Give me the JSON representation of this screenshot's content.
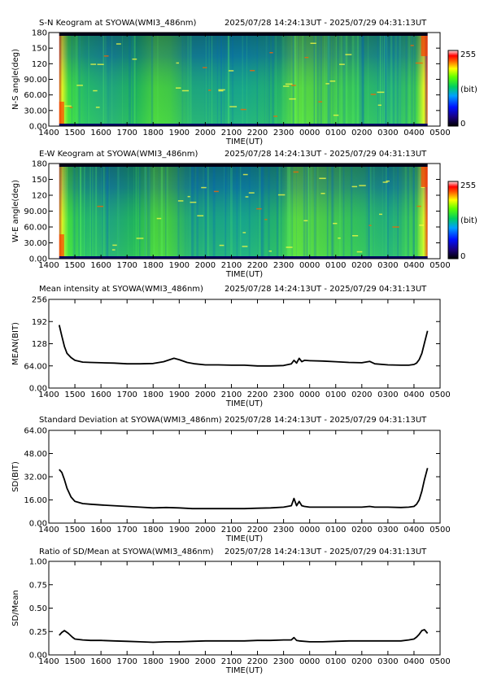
{
  "figure": {
    "time_range": "2025/07/28 14:24:13UT - 2025/07/29 04:31:13UT",
    "x_tick_labels": [
      "1400",
      "1500",
      "1600",
      "1700",
      "1800",
      "1900",
      "2000",
      "2100",
      "2200",
      "2300",
      "0000",
      "0100",
      "0200",
      "0300",
      "0400",
      "0500"
    ],
    "x_label": "TIME(UT)"
  },
  "colors": {
    "line": "#000000",
    "frame": "#000000",
    "bg": "#ffffff"
  },
  "chart_data": [
    {
      "type": "heatmap",
      "title": "S-N Keogram at SYOWA(WMI3_486nm)",
      "ylabel": "N-S angle(deg)",
      "xlabel": "TIME(UT)",
      "y_ticks": [
        "0.00",
        "30.00",
        "60.00",
        "90.00",
        "120",
        "150",
        "180"
      ],
      "ylim": [
        0,
        180
      ],
      "x_range_hours": [
        14.0,
        29.0
      ],
      "data_range_hours": [
        14.4,
        28.52
      ],
      "colorbar": {
        "min": "0",
        "max": "255",
        "unit": "(bit)"
      }
    },
    {
      "type": "heatmap",
      "title": "E-W Keogram at SYOWA(WMI3_486nm)",
      "ylabel": "W-E angle(deg)",
      "xlabel": "TIME(UT)",
      "y_ticks": [
        "0.00",
        "30.00",
        "60.00",
        "90.00",
        "120",
        "150",
        "180"
      ],
      "ylim": [
        0,
        180
      ],
      "x_range_hours": [
        14.0,
        29.0
      ],
      "data_range_hours": [
        14.4,
        28.52
      ],
      "colorbar": {
        "min": "0",
        "max": "255",
        "unit": "(bit)"
      }
    },
    {
      "type": "line",
      "title": "Mean intensity at SYOWA(WMI3_486nm)",
      "ylabel": "MEAN(BIT)",
      "xlabel": "TIME(UT)",
      "y_ticks": [
        "0.00",
        "64.00",
        "128",
        "192",
        "256"
      ],
      "ylim": [
        0,
        256
      ],
      "x_hours": [
        14.4,
        14.5,
        14.6,
        14.7,
        14.85,
        15.0,
        15.3,
        15.6,
        16.0,
        16.5,
        17.0,
        17.5,
        18.0,
        18.4,
        18.8,
        19.0,
        19.3,
        19.6,
        20.0,
        20.5,
        21.0,
        21.5,
        22.0,
        22.5,
        23.0,
        23.3,
        23.4,
        23.5,
        23.6,
        23.7,
        23.8,
        24.0,
        24.5,
        25.0,
        25.5,
        26.0,
        26.3,
        26.5,
        27.0,
        27.5,
        27.8,
        28.0,
        28.1,
        28.2,
        28.3,
        28.4,
        28.52
      ],
      "y": [
        182,
        150,
        120,
        100,
        88,
        80,
        75,
        74,
        73,
        72,
        70,
        70,
        71,
        76,
        86,
        82,
        74,
        70,
        67,
        67,
        66,
        66,
        64,
        64,
        65,
        70,
        80,
        72,
        86,
        76,
        80,
        79,
        78,
        76,
        74,
        73,
        77,
        70,
        67,
        66,
        66,
        68,
        72,
        82,
        100,
        130,
        165
      ]
    },
    {
      "type": "line",
      "title": "Standard Deviation at SYOWA(WMI3_486nm)",
      "ylabel": "SD(BIT)",
      "xlabel": "TIME(UT)",
      "y_ticks": [
        "0.00",
        "16.00",
        "32.00",
        "48.00",
        "64.00"
      ],
      "ylim": [
        0,
        64
      ],
      "x_hours": [
        14.4,
        14.5,
        14.6,
        14.7,
        14.85,
        15.0,
        15.3,
        15.6,
        16.0,
        16.5,
        17.0,
        17.5,
        18.0,
        18.5,
        19.0,
        19.5,
        20.0,
        20.5,
        21.0,
        21.5,
        22.0,
        22.5,
        23.0,
        23.3,
        23.4,
        23.5,
        23.6,
        23.7,
        23.8,
        24.0,
        24.5,
        25.0,
        25.5,
        26.0,
        26.3,
        26.5,
        27.0,
        27.5,
        27.8,
        28.0,
        28.1,
        28.2,
        28.3,
        28.4,
        28.52
      ],
      "y": [
        37,
        35,
        30,
        24,
        18,
        15,
        13.5,
        13,
        12.5,
        12,
        11.5,
        11,
        10.5,
        10.8,
        10.5,
        10,
        10,
        10,
        10,
        10,
        10.3,
        10.5,
        11,
        12,
        17,
        12,
        15,
        12,
        11.5,
        11,
        11,
        11,
        11,
        11,
        11.5,
        11,
        11,
        10.8,
        11,
        11.5,
        13,
        16,
        22,
        30,
        38
      ]
    },
    {
      "type": "line",
      "title": "Ratio of SD/Mean at SYOWA(WMI3_486nm)",
      "ylabel": "SD/Mean",
      "xlabel": "TIME(UT)",
      "y_ticks": [
        "0.00",
        "0.25",
        "0.50",
        "0.75",
        "1.00"
      ],
      "ylim": [
        0,
        1.0
      ],
      "x_hours": [
        14.4,
        14.5,
        14.6,
        14.75,
        14.9,
        15.0,
        15.3,
        15.6,
        16.0,
        16.5,
        17.0,
        17.5,
        18.0,
        18.5,
        19.0,
        19.5,
        20.0,
        20.5,
        21.0,
        21.5,
        22.0,
        22.5,
        23.0,
        23.3,
        23.4,
        23.5,
        23.6,
        24.0,
        24.5,
        25.0,
        25.5,
        26.0,
        26.5,
        27.0,
        27.5,
        27.8,
        28.0,
        28.1,
        28.2,
        28.3,
        28.4,
        28.52
      ],
      "y": [
        0.21,
        0.24,
        0.26,
        0.23,
        0.19,
        0.17,
        0.16,
        0.155,
        0.155,
        0.15,
        0.145,
        0.14,
        0.135,
        0.14,
        0.14,
        0.145,
        0.15,
        0.15,
        0.15,
        0.15,
        0.155,
        0.155,
        0.16,
        0.16,
        0.185,
        0.155,
        0.15,
        0.14,
        0.14,
        0.145,
        0.15,
        0.15,
        0.15,
        0.15,
        0.15,
        0.16,
        0.17,
        0.19,
        0.22,
        0.26,
        0.27,
        0.23
      ]
    }
  ]
}
